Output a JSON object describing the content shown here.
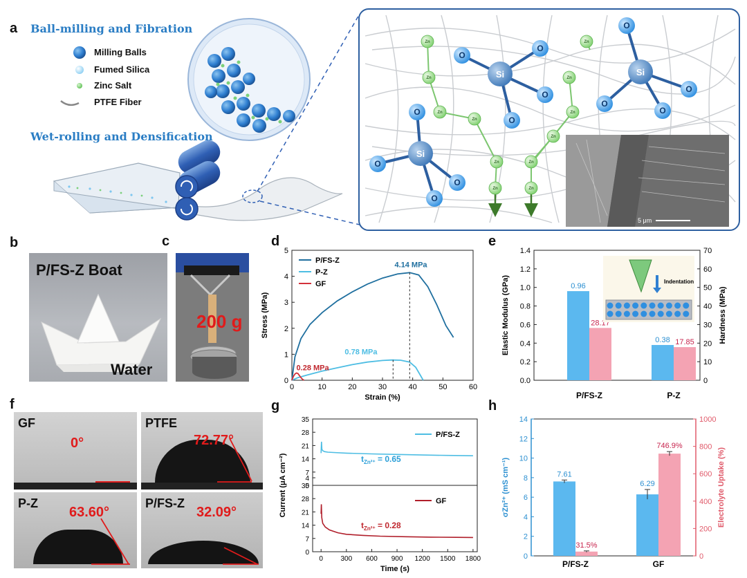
{
  "panel_a": {
    "label": "a",
    "title1": "Ball-milling and Fibration",
    "title2": "Wet-rolling and Densification",
    "legend": [
      "Milling Balls",
      "Fumed Silica",
      "Zinc Salt",
      "PTFE Fiber"
    ],
    "atom_si": "Si",
    "atom_o": "O",
    "atom_zn": "Zn",
    "scale_bar": "5 μm",
    "colors": {
      "frame": "#2d5fa0",
      "ball": "#2f7fd1",
      "silica": "#a9d8f5",
      "zinc": "#7bd07b",
      "arrow": "#3d7a2a"
    }
  },
  "panel_b": {
    "label": "b",
    "caption": "P/FS-Z Boat",
    "water": "Water"
  },
  "panel_c": {
    "label": "c",
    "weight": "200 g"
  },
  "panel_d": {
    "label": "d"
  },
  "panel_e": {
    "label": "e",
    "indentation": "Indentation"
  },
  "panel_f": {
    "label": "f",
    "tiles": [
      {
        "name": "GF",
        "angle": "0°"
      },
      {
        "name": "PTFE",
        "angle": "72.77°"
      },
      {
        "name": "P-Z",
        "angle": "63.60°"
      },
      {
        "name": "P/FS-Z",
        "angle": "32.09°"
      }
    ]
  },
  "panel_g": {
    "label": "g"
  },
  "panel_h": {
    "label": "h"
  },
  "chart_data": [
    {
      "id": "d",
      "type": "line",
      "xlabel": "Strain (%)",
      "ylabel": "Stress (MPa)",
      "xlim": [
        0,
        60
      ],
      "ylim": [
        0,
        5
      ],
      "xticks": [
        0,
        10,
        20,
        30,
        40,
        50,
        60
      ],
      "yticks": [
        0,
        1,
        2,
        3,
        4,
        5
      ],
      "series": [
        {
          "name": "P/FS-Z",
          "color": "#1f6f9f",
          "x": [
            0,
            1,
            3,
            6,
            10,
            15,
            20,
            25,
            30,
            35,
            39,
            42,
            45,
            48,
            51,
            53.5
          ],
          "y": [
            0,
            0.9,
            1.6,
            2.15,
            2.6,
            3.05,
            3.4,
            3.7,
            3.93,
            4.09,
            4.14,
            4.05,
            3.6,
            2.9,
            2.1,
            1.65
          ]
        },
        {
          "name": "P-Z",
          "color": "#4dbde3",
          "x": [
            0,
            2,
            5,
            10,
            15,
            20,
            25,
            30,
            33,
            36,
            39,
            41,
            42.5,
            43.5
          ],
          "y": [
            0,
            0.1,
            0.2,
            0.35,
            0.48,
            0.6,
            0.7,
            0.76,
            0.78,
            0.77,
            0.7,
            0.5,
            0.2,
            0
          ]
        },
        {
          "name": "GF",
          "color": "#d3303a",
          "x": [
            0,
            0.5,
            1,
            1.5,
            2,
            2.5,
            3,
            3.5,
            4
          ],
          "y": [
            0,
            0.15,
            0.24,
            0.28,
            0.26,
            0.18,
            0.1,
            0.04,
            0
          ]
        }
      ],
      "annotations": [
        {
          "text": "4.14 MPa",
          "color": "#1f6f9f"
        },
        {
          "text": "0.78 MPa",
          "color": "#4dbde3"
        },
        {
          "text": "0.28 MPa",
          "color": "#c0282f"
        }
      ]
    },
    {
      "id": "e",
      "type": "bar",
      "categories": [
        "P/FS-Z",
        "P-Z"
      ],
      "ylabel_left": "Elastic Modulus (GPa)",
      "ylabel_right": "Hardness (MPa)",
      "ylim_left": [
        0,
        1.4
      ],
      "ylim_right": [
        0,
        70
      ],
      "yticks_left": [
        0.0,
        0.2,
        0.4,
        0.6,
        0.8,
        1.0,
        1.2,
        1.4
      ],
      "yticks_right": [
        0,
        10,
        20,
        30,
        40,
        50,
        60,
        70
      ],
      "series": [
        {
          "name": "Elastic Modulus",
          "axis": "left",
          "color": "#5bb8ef",
          "values": [
            0.96,
            0.38
          ],
          "labels": [
            "0.96",
            "0.38"
          ]
        },
        {
          "name": "Hardness",
          "axis": "right",
          "color": "#f4a3b3",
          "values": [
            28.17,
            17.85
          ],
          "labels": [
            "28.17",
            "17.85"
          ]
        }
      ]
    },
    {
      "id": "g",
      "type": "line",
      "xlabel": "Time (s)",
      "ylabel": "Current (μA cm⁻²)",
      "xlim": [
        -100,
        1850
      ],
      "xticks": [
        0,
        300,
        600,
        900,
        1200,
        1500,
        1800
      ],
      "panels": [
        {
          "name": "P/FS-Z",
          "color": "#4dbde3",
          "ylim": [
            0,
            35
          ],
          "yticks": [
            0,
            4,
            7,
            14,
            21,
            28,
            35
          ],
          "annotation": "t",
          "annotation_sub": "Zn²⁺",
          "annotation_val": " = 0.65",
          "x": [
            0,
            5,
            10,
            20,
            40,
            80,
            150,
            300,
            600,
            900,
            1200,
            1500,
            1800
          ],
          "y": [
            17,
            23,
            19,
            18.3,
            17.8,
            17.5,
            17.3,
            17.0,
            16.6,
            16.3,
            16.0,
            15.8,
            15.6
          ]
        },
        {
          "name": "GF",
          "color": "#b01e2a",
          "ylim": [
            0,
            35
          ],
          "yticks": [
            0,
            7,
            14,
            21,
            28,
            35
          ],
          "annotation": "t",
          "annotation_sub": "Zn²⁺",
          "annotation_val": " = 0.28",
          "x": [
            0,
            3,
            8,
            20,
            50,
            100,
            200,
            300,
            500,
            700,
            1000,
            1300,
            1600,
            1800
          ],
          "y": [
            20,
            25,
            18,
            15,
            13,
            11.5,
            10,
            9.2,
            8.6,
            8.2,
            7.9,
            7.7,
            7.6,
            7.5
          ]
        }
      ]
    },
    {
      "id": "h",
      "type": "bar",
      "categories": [
        "P/FS-Z",
        "GF"
      ],
      "ylabel_left": "σZn²⁺ (mS cm⁻¹)",
      "ylabel_right": "Electrolyte Uptake (%)",
      "ylim_left": [
        0,
        14
      ],
      "ylim_right": [
        0,
        1000
      ],
      "yticks_left": [
        0,
        2,
        4,
        6,
        8,
        10,
        12,
        14
      ],
      "yticks_right": [
        0,
        200,
        400,
        600,
        800,
        1000
      ],
      "series": [
        {
          "name": "σZn2+",
          "axis": "left",
          "color": "#5bb8ef",
          "values": [
            7.61,
            6.29
          ],
          "labels": [
            "7.61",
            "6.29"
          ],
          "err": [
            0.15,
            0.5
          ]
        },
        {
          "name": "Electrolyte Uptake",
          "axis": "right",
          "color": "#f4a3b3",
          "values": [
            31.5,
            746.9
          ],
          "labels": [
            "31.5%",
            "746.9%"
          ],
          "err": [
            5,
            15
          ]
        }
      ]
    }
  ]
}
